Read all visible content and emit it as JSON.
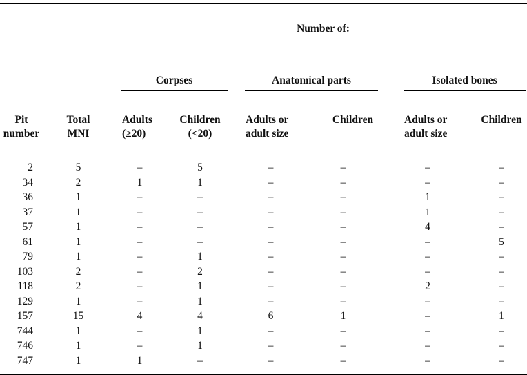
{
  "table": {
    "spanner": "Number of:",
    "groups": [
      {
        "label": "Corpses"
      },
      {
        "label": "Anatomical parts"
      },
      {
        "label": "Isolated bones"
      }
    ],
    "columns": [
      "Pit\nnumber",
      "Total\nMNI",
      "Adults\n(≥20)",
      "Children\n(<20)",
      "Adults or\nadult size",
      "Children",
      "Adults or\nadult size",
      "Children"
    ],
    "dash": "–",
    "rows": [
      [
        "2",
        "5",
        "–",
        "5",
        "–",
        "–",
        "–",
        "–"
      ],
      [
        "34",
        "2",
        "1",
        "1",
        "–",
        "–",
        "–",
        "–"
      ],
      [
        "36",
        "1",
        "–",
        "–",
        "–",
        "–",
        "1",
        "–"
      ],
      [
        "37",
        "1",
        "–",
        "–",
        "–",
        "–",
        "1",
        "–"
      ],
      [
        "57",
        "1",
        "–",
        "–",
        "–",
        "–",
        "4",
        "–"
      ],
      [
        "61",
        "1",
        "–",
        "–",
        "–",
        "–",
        "–",
        "5"
      ],
      [
        "79",
        "1",
        "–",
        "1",
        "–",
        "–",
        "–",
        "–"
      ],
      [
        "103",
        "2",
        "–",
        "2",
        "–",
        "–",
        "–",
        "–"
      ],
      [
        "118",
        "2",
        "–",
        "1",
        "–",
        "–",
        "2",
        "–"
      ],
      [
        "129",
        "1",
        "–",
        "1",
        "–",
        "–",
        "–",
        "–"
      ],
      [
        "157",
        "15",
        "4",
        "4",
        "6",
        "1",
        "–",
        "1"
      ],
      [
        "744",
        "1",
        "–",
        "1",
        "–",
        "–",
        "–",
        "–"
      ],
      [
        "746",
        "1",
        "–",
        "1",
        "–",
        "–",
        "–",
        "–"
      ],
      [
        "747",
        "1",
        "1",
        "–",
        "–",
        "–",
        "–",
        "–"
      ]
    ]
  }
}
